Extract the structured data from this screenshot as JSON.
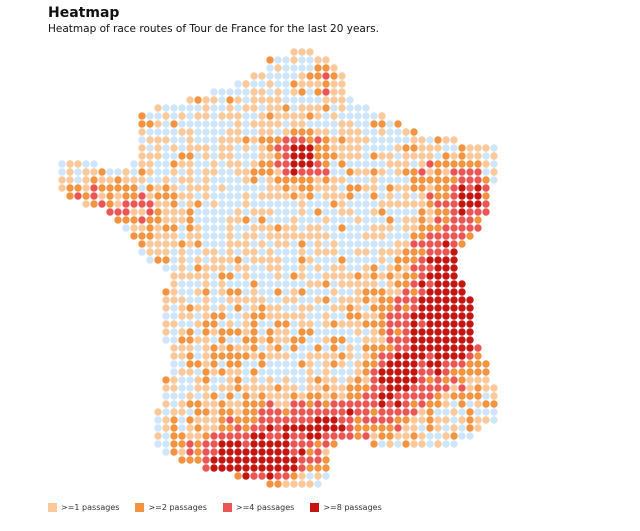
{
  "chart_data": {
    "type": "heatmap",
    "title": "Heatmap",
    "subtitle": "Heatmap of race routes of Tour de France for the last 20 years.",
    "bins": [
      {
        "label": ">=1 passages",
        "color": "#fbc89c"
      },
      {
        "label": ">=2 passages",
        "color": "#f19340"
      },
      {
        "label": ">=4 passages",
        "color": "#ec5555"
      },
      {
        "label": ">=8 passages",
        "color": "#c4150f"
      }
    ],
    "zero_color": "#cfe5fb",
    "hotspots": [
      {
        "region": "Alps",
        "level": ">=8 passages"
      },
      {
        "region": "Pyrenees",
        "level": ">=8 passages"
      },
      {
        "region": "Paris",
        "level": ">=8 passages"
      },
      {
        "region": "Vosges",
        "level": ">=8 passages"
      }
    ]
  }
}
